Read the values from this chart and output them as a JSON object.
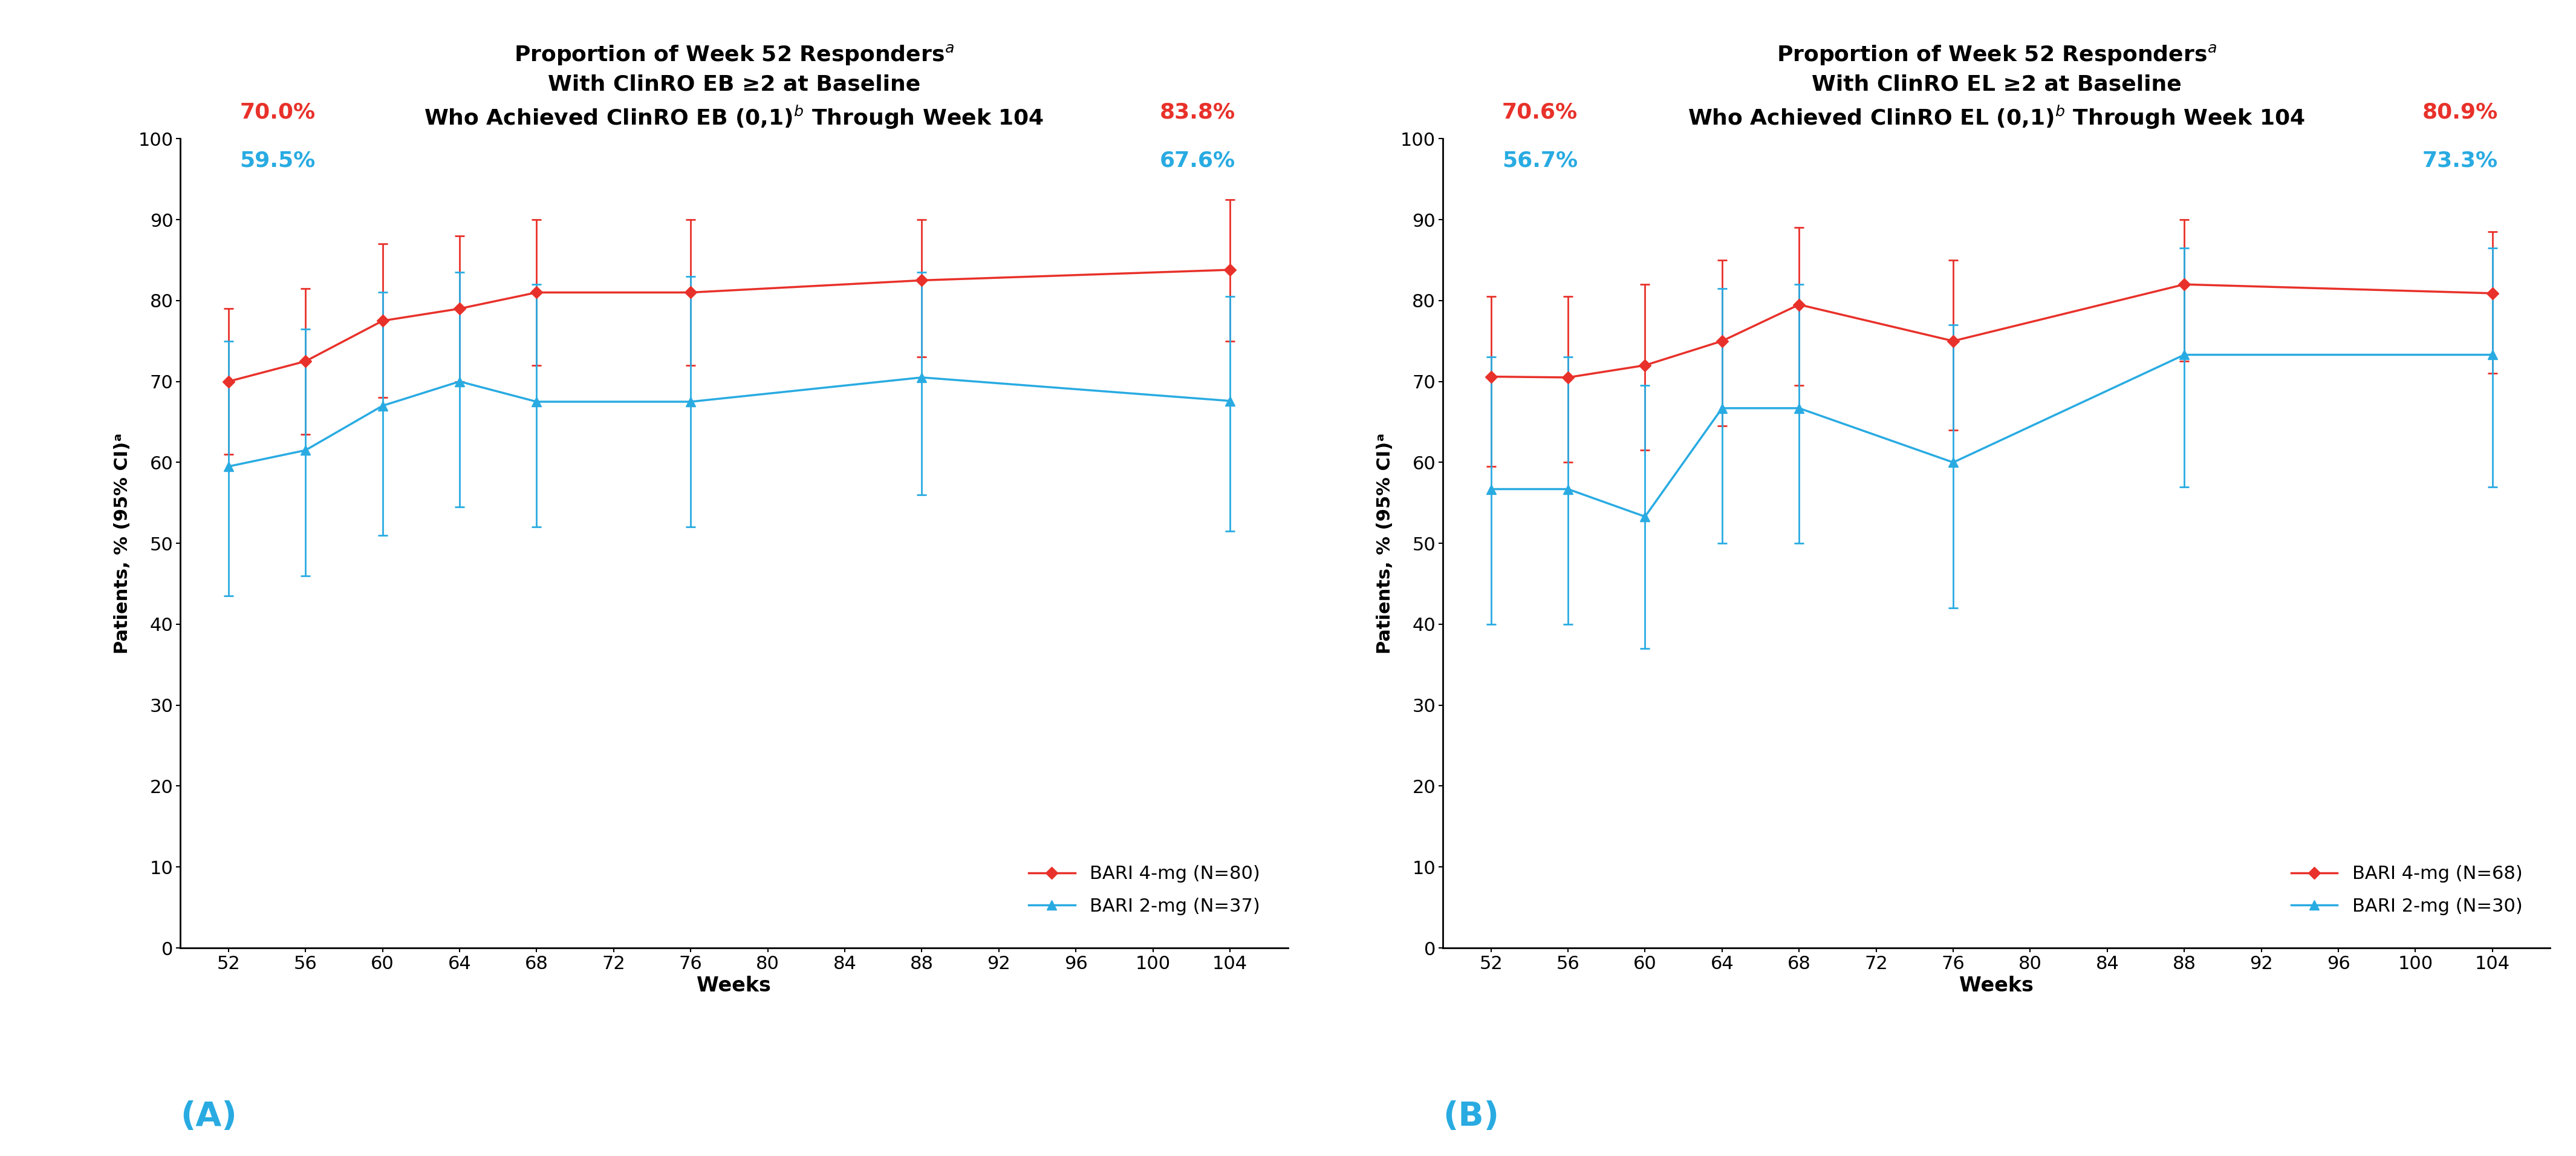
{
  "panel_A": {
    "title": "Proportion of Week 52 Responders$^{a}$\nWith ClinRO EB ≥2 at Baseline\nWho Achieved ClinRO EB (0,1)$^{b}$ Through Week 104",
    "xlabel": "Weeks",
    "ylabel": "Patients, % (95% CI)ᵃ",
    "panel_label": "(A)",
    "bari4_label": "BARI 4-mg (N=80)",
    "bari2_label": "BARI 2-mg (N=37)",
    "bari4_week52_pct": "70.0%",
    "bari2_week52_pct": "59.5%",
    "bari4_week104_pct": "83.8%",
    "bari2_week104_pct": "67.6%",
    "weeks": [
      52,
      56,
      60,
      64,
      68,
      76,
      88,
      104
    ],
    "bari4_y": [
      70.0,
      72.5,
      77.5,
      79.0,
      81.0,
      81.0,
      82.5,
      83.8
    ],
    "bari4_ylo": [
      61.0,
      63.5,
      68.0,
      70.0,
      72.0,
      72.0,
      73.0,
      75.0
    ],
    "bari4_yhi": [
      79.0,
      81.5,
      87.0,
      88.0,
      90.0,
      90.0,
      90.0,
      92.5
    ],
    "bari2_y": [
      59.5,
      61.5,
      67.0,
      70.0,
      67.5,
      67.5,
      70.5,
      67.6
    ],
    "bari2_ylo": [
      43.5,
      46.0,
      51.0,
      54.5,
      52.0,
      52.0,
      56.0,
      51.5
    ],
    "bari2_yhi": [
      75.0,
      76.5,
      81.0,
      83.5,
      82.0,
      83.0,
      83.5,
      80.5
    ]
  },
  "panel_B": {
    "title": "Proportion of Week 52 Responders$^{a}$\nWith ClinRO EL ≥2 at Baseline\nWho Achieved ClinRO EL (0,1)$^{b}$ Through Week 104",
    "xlabel": "Weeks",
    "ylabel": "Patients, % (95% CI)ᵃ",
    "panel_label": "(B)",
    "bari4_label": "BARI 4-mg (N=68)",
    "bari2_label": "BARI 2-mg (N=30)",
    "bari4_week52_pct": "70.6%",
    "bari2_week52_pct": "56.7%",
    "bari4_week104_pct": "80.9%",
    "bari2_week104_pct": "73.3%",
    "weeks": [
      52,
      56,
      60,
      64,
      68,
      76,
      88,
      104
    ],
    "bari4_y": [
      70.6,
      70.5,
      72.0,
      75.0,
      79.5,
      75.0,
      82.0,
      80.9
    ],
    "bari4_ylo": [
      59.5,
      60.0,
      61.5,
      64.5,
      69.5,
      64.0,
      72.5,
      71.0
    ],
    "bari4_yhi": [
      80.5,
      80.5,
      82.0,
      85.0,
      89.0,
      85.0,
      90.0,
      88.5
    ],
    "bari2_y": [
      56.7,
      56.7,
      53.3,
      66.7,
      66.7,
      60.0,
      73.3,
      73.3
    ],
    "bari2_ylo": [
      40.0,
      40.0,
      37.0,
      50.0,
      50.0,
      42.0,
      57.0,
      57.0
    ],
    "bari2_yhi": [
      73.0,
      73.0,
      69.5,
      81.5,
      82.0,
      77.0,
      86.5,
      86.5
    ]
  },
  "red_color": "#E8312A",
  "blue_color": "#29ABE2",
  "title_fontsize": 26,
  "label_fontsize": 24,
  "tick_fontsize": 22,
  "legend_fontsize": 22,
  "annotation_fontsize": 26,
  "panel_label_fontsize": 40,
  "ylabel_fontsize": 22,
  "ylim": [
    0,
    100
  ],
  "yticks": [
    0,
    10,
    20,
    30,
    40,
    50,
    60,
    70,
    80,
    90,
    100
  ],
  "xticks": [
    52,
    56,
    60,
    64,
    68,
    72,
    76,
    80,
    84,
    88,
    92,
    96,
    100,
    104
  ],
  "xlim": [
    49.5,
    107
  ]
}
